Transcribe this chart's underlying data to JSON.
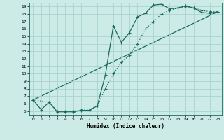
{
  "xlabel": "Humidex (Indice chaleur)",
  "bg_color": "#cceae6",
  "grid_color": "#aad4ce",
  "line_color": "#1a6b60",
  "xlim": [
    -0.5,
    23.5
  ],
  "ylim": [
    4.5,
    19.5
  ],
  "xticks": [
    0,
    1,
    2,
    3,
    4,
    5,
    6,
    7,
    8,
    9,
    10,
    11,
    12,
    13,
    14,
    15,
    16,
    17,
    18,
    19,
    20,
    21,
    22,
    23
  ],
  "yticks": [
    5,
    6,
    7,
    8,
    9,
    10,
    11,
    12,
    13,
    14,
    15,
    16,
    17,
    18,
    19
  ],
  "line1_x": [
    0,
    1,
    2,
    3,
    4,
    5,
    6,
    7,
    8,
    9,
    10,
    11,
    12,
    13,
    14,
    15,
    16,
    17,
    18,
    19,
    20,
    21,
    22,
    23
  ],
  "line1_y": [
    6.5,
    5.2,
    6.2,
    4.9,
    4.9,
    4.9,
    5.1,
    5.1,
    5.7,
    9.8,
    16.4,
    14.2,
    15.5,
    17.6,
    18.1,
    19.2,
    19.3,
    18.7,
    18.8,
    19.1,
    18.8,
    18.2,
    18.1,
    18.3
  ],
  "line2_x": [
    0,
    2,
    3,
    4,
    5,
    6,
    7,
    8,
    9,
    10,
    11,
    12,
    13,
    14,
    15,
    16,
    17,
    18,
    19,
    20,
    21,
    22,
    23
  ],
  "line2_y": [
    6.5,
    6.2,
    5.0,
    5.0,
    5.0,
    5.2,
    5.2,
    5.7,
    8.0,
    10.0,
    11.5,
    12.5,
    14.0,
    16.0,
    17.0,
    18.0,
    18.5,
    18.8,
    19.0,
    18.8,
    18.5,
    18.3,
    18.3
  ],
  "line3_x": [
    0,
    23
  ],
  "line3_y": [
    6.5,
    18.3
  ]
}
